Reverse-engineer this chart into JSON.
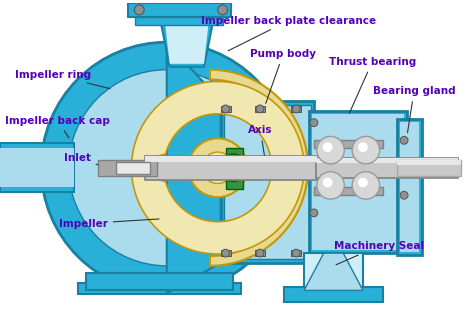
{
  "bg_color": "#ffffff",
  "pump_blue": "#29b0d8",
  "pump_dark_blue": "#1a7fa0",
  "pump_light_blue": "#aadcee",
  "pump_lighter_blue": "#d0eef8",
  "impeller_yellow": "#e8d890",
  "impeller_dark": "#c0980a",
  "impeller_light": "#f0e8b0",
  "shaft_gray": "#c8c8c8",
  "shaft_mid": "#a8a8a8",
  "shaft_dark": "#808080",
  "shaft_light": "#e8e8e8",
  "green_seal": "#3a9040",
  "bearing_silver": "#c0c0c0",
  "label_color": "#5500bb",
  "bolt_color": "#909090",
  "labels": {
    "impeller_ring": "Impeller ring",
    "impeller_back_cap": "Impeller back cap",
    "impeller_back_plate": "Impeller back plate clearance",
    "pump_body": "Pump body",
    "thrust_bearing": "Thrust bearing",
    "bearing_gland": "Bearing gland",
    "axis": "Axis",
    "inlet": "Inlet",
    "impeller": "Impeller",
    "machinery_seal": "Machinery Seal"
  }
}
